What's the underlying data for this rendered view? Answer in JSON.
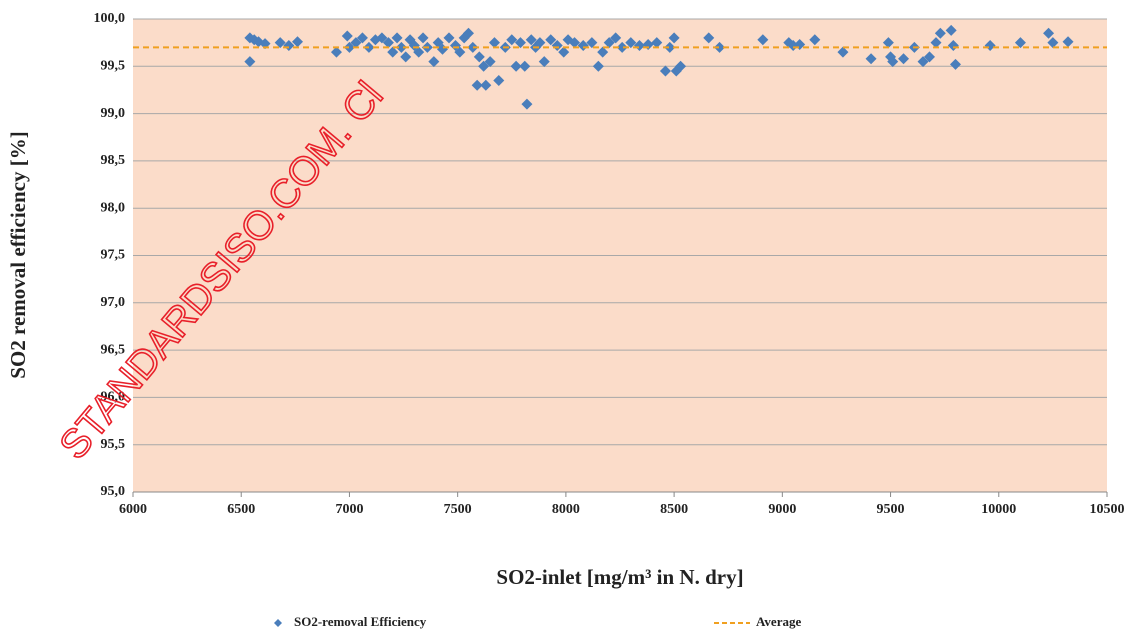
{
  "chart_data": {
    "type": "scatter",
    "xlabel": "SO2-inlet [mg/m³ in N. dry]",
    "ylabel": "SO2 removal efficiency [%]",
    "watermark": "STANDARDSISO.COM. Cl",
    "xlim": [
      6000,
      10500
    ],
    "xticks": [
      6000,
      6500,
      7000,
      7500,
      8000,
      8500,
      9000,
      9500,
      10000,
      10500
    ],
    "ylim": [
      95,
      100
    ],
    "yticks": [
      {
        "value": 95,
        "label": "95,0"
      },
      {
        "value": 95.5,
        "label": "95,5"
      },
      {
        "value": 96,
        "label": "96,0"
      },
      {
        "value": 96.5,
        "label": "96,5"
      },
      {
        "value": 97,
        "label": "97,0"
      },
      {
        "value": 97.5,
        "label": "97,5"
      },
      {
        "value": 98,
        "label": "98,0"
      },
      {
        "value": 98.5,
        "label": "98,5"
      },
      {
        "value": 99,
        "label": "99,0"
      },
      {
        "value": 99.5,
        "label": "99,5"
      },
      {
        "value": 100,
        "label": "100,0"
      }
    ],
    "grid": true,
    "legend": "bottom",
    "series": [
      {
        "name": "SO2-removal Efficiency",
        "color": "#4a7ebb",
        "x": [
          6540,
          6540,
          6560,
          6580,
          6610,
          6680,
          6720,
          6760,
          6940,
          6990,
          7000,
          7030,
          7060,
          7090,
          7120,
          7150,
          7180,
          7200,
          7220,
          7240,
          7260,
          7280,
          7300,
          7320,
          7340,
          7360,
          7390,
          7410,
          7430,
          7460,
          7490,
          7510,
          7530,
          7550,
          7570,
          7590,
          7600,
          7620,
          7630,
          7650,
          7670,
          7690,
          7720,
          7750,
          7770,
          7790,
          7810,
          7820,
          7840,
          7860,
          7880,
          7900,
          7930,
          7960,
          7990,
          8010,
          8040,
          8080,
          8120,
          8150,
          8170,
          8200,
          8230,
          8260,
          8300,
          8340,
          8380,
          8420,
          8460,
          8480,
          8500,
          8510,
          8530,
          8660,
          8710,
          8910,
          9030,
          9050,
          9080,
          9150,
          9280,
          9410,
          9490,
          9500,
          9510,
          9560,
          9610,
          9650,
          9680,
          9710,
          9730,
          9780,
          9790,
          9800,
          9960,
          10100,
          10230,
          10250,
          10320
        ],
        "values": [
          99.8,
          99.55,
          99.78,
          99.76,
          99.74,
          99.75,
          99.72,
          99.76,
          99.65,
          99.82,
          99.7,
          99.75,
          99.8,
          99.7,
          99.78,
          99.8,
          99.75,
          99.65,
          99.8,
          99.7,
          99.6,
          99.78,
          99.72,
          99.65,
          99.8,
          99.7,
          99.55,
          99.75,
          99.68,
          99.8,
          99.72,
          99.65,
          99.8,
          99.85,
          99.7,
          99.3,
          99.6,
          99.5,
          99.3,
          99.55,
          99.75,
          99.35,
          99.7,
          99.78,
          99.5,
          99.75,
          99.5,
          99.1,
          99.78,
          99.7,
          99.75,
          99.55,
          99.78,
          99.72,
          99.65,
          99.78,
          99.75,
          99.72,
          99.75,
          99.5,
          99.65,
          99.75,
          99.8,
          99.7,
          99.75,
          99.72,
          99.73,
          99.75,
          99.45,
          99.7,
          99.8,
          99.45,
          99.5,
          99.8,
          99.7,
          99.78,
          99.75,
          99.72,
          99.73,
          99.78,
          99.65,
          99.58,
          99.75,
          99.6,
          99.55,
          99.58,
          99.7,
          99.55,
          99.6,
          99.75,
          99.85,
          99.88,
          99.72,
          99.52,
          99.72,
          99.75,
          99.85,
          99.75,
          99.76
        ]
      },
      {
        "name": "Average",
        "color": "#f0a020",
        "type": "line",
        "x": [
          6000,
          10500
        ],
        "values": [
          99.7,
          99.7
        ]
      }
    ]
  }
}
